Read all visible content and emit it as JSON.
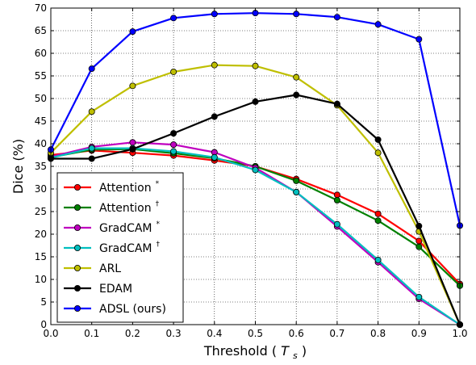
{
  "chart_data": {
    "type": "line",
    "xlabel": "Threshold",
    "xlabel_symbol": "T",
    "xlabel_sub": "s",
    "ylabel": "Dice (%)",
    "xlim": [
      0.0,
      1.0
    ],
    "ylim": [
      0,
      70
    ],
    "x": [
      0.0,
      0.1,
      0.2,
      0.3,
      0.4,
      0.5,
      0.6,
      0.7,
      0.8,
      0.9,
      1.0
    ],
    "x_ticks": [
      "0.0",
      "0.1",
      "0.2",
      "0.3",
      "0.4",
      "0.5",
      "0.6",
      "0.7",
      "0.8",
      "0.9",
      "1.0"
    ],
    "y_ticks": [
      "0",
      "5",
      "10",
      "15",
      "20",
      "25",
      "30",
      "35",
      "40",
      "45",
      "50",
      "55",
      "60",
      "65",
      "70"
    ],
    "grid": true,
    "legend_position": "lower-left",
    "series": [
      {
        "name": "Attention",
        "sup": "*",
        "color": "#ff0000",
        "values": [
          37.5,
          38.5,
          38.0,
          37.4,
          36.3,
          35.0,
          32.2,
          28.7,
          24.5,
          18.5,
          9.0
        ]
      },
      {
        "name": "Attention",
        "sup": "†",
        "color": "#008000",
        "values": [
          37.0,
          38.7,
          38.8,
          37.9,
          36.8,
          35.0,
          31.8,
          27.5,
          23.0,
          17.2,
          8.6
        ]
      },
      {
        "name": "GradCAM",
        "sup": "*",
        "color": "#bf00bf",
        "values": [
          37.1,
          39.3,
          40.3,
          39.8,
          38.1,
          34.7,
          29.3,
          21.7,
          13.8,
          5.7,
          0.0
        ]
      },
      {
        "name": "GradCAM",
        "sup": "†",
        "color": "#00bfbf",
        "values": [
          36.9,
          39.0,
          39.0,
          38.3,
          37.0,
          34.2,
          29.3,
          22.2,
          14.3,
          6.1,
          0.0
        ]
      },
      {
        "name": "ARL",
        "sup": "",
        "color": "#bfbf00",
        "values": [
          38.0,
          47.1,
          52.8,
          55.9,
          57.4,
          57.2,
          54.7,
          48.5,
          38.0,
          20.6,
          0.0
        ]
      },
      {
        "name": "EDAM",
        "sup": "",
        "color": "#000000",
        "values": [
          36.7,
          36.7,
          38.8,
          42.3,
          46.0,
          49.3,
          50.8,
          48.8,
          40.9,
          21.8,
          0.0
        ]
      },
      {
        "name": "ADSL (ours)",
        "sup": "",
        "color": "#0000ff",
        "values": [
          38.7,
          56.6,
          64.8,
          67.8,
          68.7,
          68.9,
          68.7,
          68.0,
          66.4,
          63.1,
          21.9
        ]
      }
    ]
  }
}
